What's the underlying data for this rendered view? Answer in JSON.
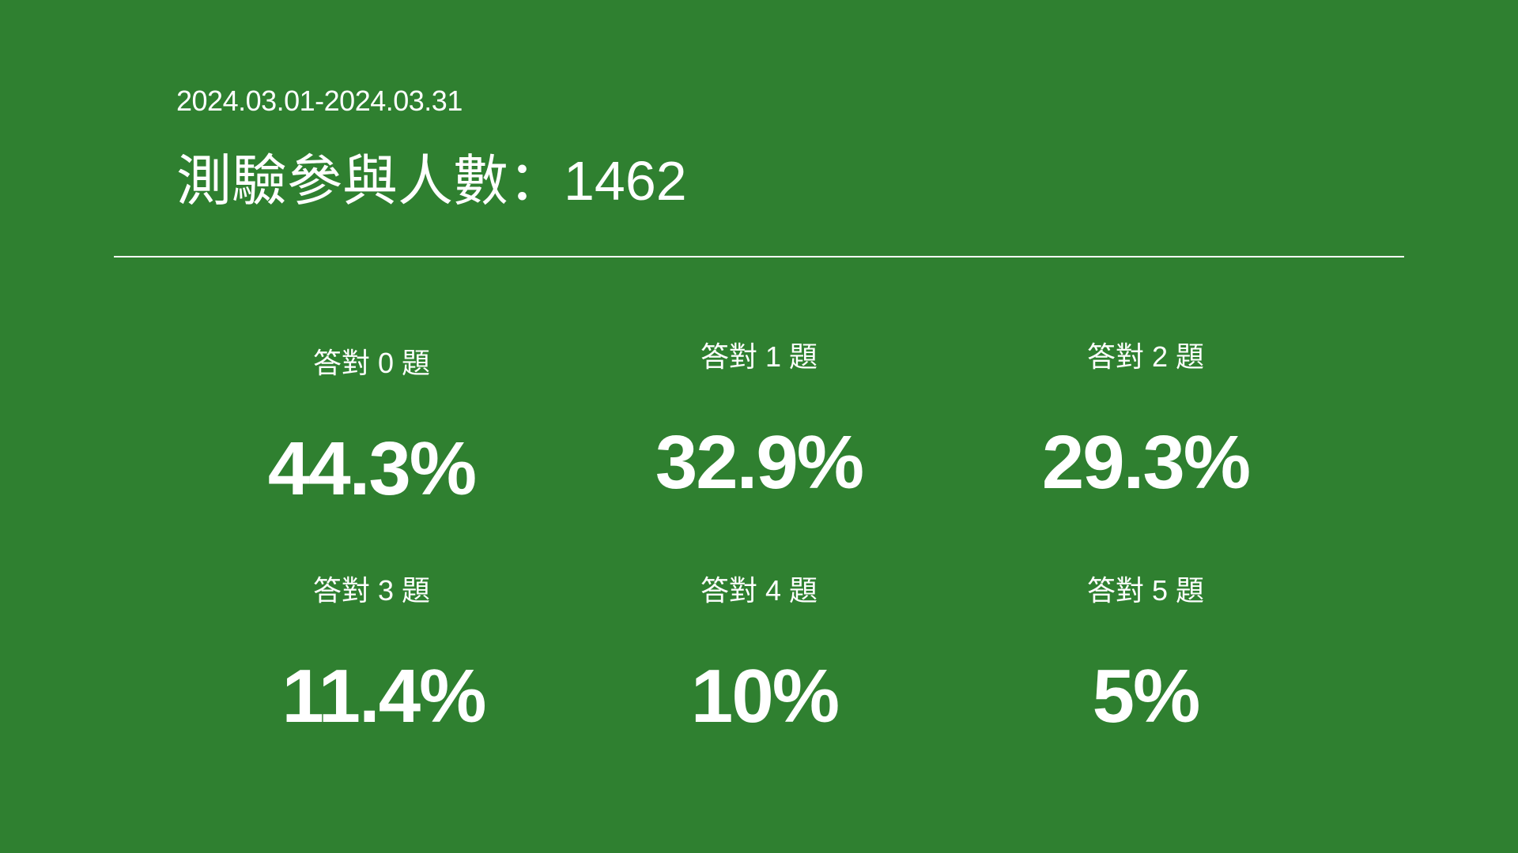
{
  "header": {
    "date_range": "2024.03.01-2024.03.31",
    "title": "測驗參與人數：1462"
  },
  "stats": [
    {
      "label": "答對 0 題",
      "value": "44.3%"
    },
    {
      "label": "答對 1 題",
      "value": "32.9%"
    },
    {
      "label": "答對 2 題",
      "value": "29.3%"
    },
    {
      "label": "答對 3 題",
      "value": "11.4%"
    },
    {
      "label": "答對 4 題",
      "value": "10%"
    },
    {
      "label": "答對 5 題",
      "value": "5%"
    }
  ],
  "colors": {
    "background": "#2f8030",
    "text": "#ffffff"
  }
}
